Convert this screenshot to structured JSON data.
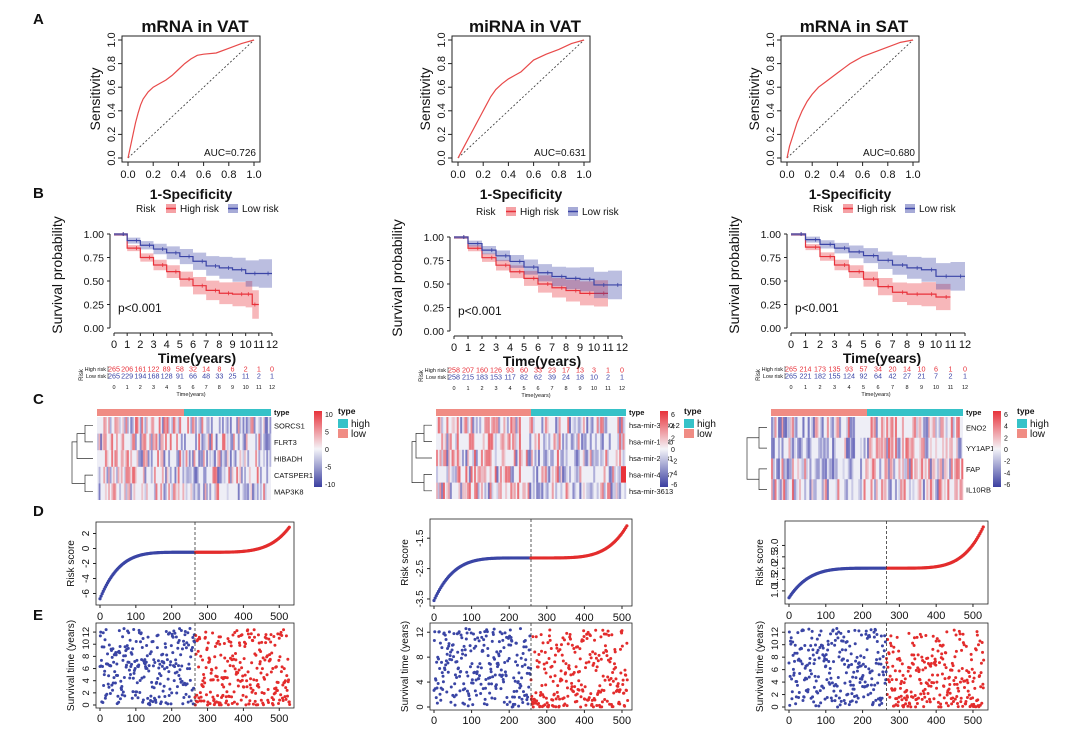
{
  "panel_letters": [
    "A",
    "B",
    "C",
    "D",
    "E"
  ],
  "chart_data": [
    {
      "type": "line",
      "panel": "A",
      "title": "mRNA in VAT",
      "xlabel": "1-Specificity",
      "ylabel": "Sensitivity",
      "auc_label": "AUC=0.726",
      "xlim": [
        0,
        1
      ],
      "ylim": [
        0,
        1
      ],
      "ticks": [
        "0.0",
        "0.2",
        "0.4",
        "0.6",
        "0.8",
        "1.0"
      ],
      "series": [
        {
          "name": "ROC",
          "x": [
            0,
            0.02,
            0.04,
            0.06,
            0.08,
            0.1,
            0.12,
            0.16,
            0.2,
            0.25,
            0.3,
            0.35,
            0.4,
            0.45,
            0.5,
            0.55,
            0.6,
            0.7,
            0.8,
            0.9,
            1.0
          ],
          "y": [
            0,
            0.1,
            0.2,
            0.3,
            0.38,
            0.45,
            0.5,
            0.56,
            0.6,
            0.63,
            0.66,
            0.7,
            0.75,
            0.8,
            0.84,
            0.87,
            0.88,
            0.89,
            0.93,
            0.97,
            1.0
          ]
        }
      ]
    },
    {
      "type": "line",
      "panel": "A",
      "title": "miRNA in VAT",
      "xlabel": "1-Specificity",
      "ylabel": "Sensitivity",
      "auc_label": "AUC=0.631",
      "xlim": [
        0,
        1
      ],
      "ylim": [
        0,
        1
      ],
      "ticks": [
        "0.0",
        "0.2",
        "0.4",
        "0.6",
        "0.8",
        "1.0"
      ],
      "series": [
        {
          "name": "ROC",
          "x": [
            0,
            0.03,
            0.06,
            0.1,
            0.14,
            0.18,
            0.22,
            0.26,
            0.3,
            0.35,
            0.4,
            0.45,
            0.5,
            0.55,
            0.6,
            0.7,
            0.8,
            0.9,
            1.0
          ],
          "y": [
            0,
            0.06,
            0.12,
            0.2,
            0.28,
            0.36,
            0.44,
            0.52,
            0.58,
            0.63,
            0.67,
            0.7,
            0.73,
            0.78,
            0.83,
            0.88,
            0.92,
            0.97,
            1.0
          ]
        }
      ]
    },
    {
      "type": "line",
      "panel": "A",
      "title": "mRNA in SAT",
      "xlabel": "1-Specificity",
      "ylabel": "Sensitivity",
      "auc_label": "AUC=0.680",
      "xlim": [
        0,
        1
      ],
      "ylim": [
        0,
        1
      ],
      "ticks": [
        "0.0",
        "0.2",
        "0.4",
        "0.6",
        "0.8",
        "1.0"
      ],
      "series": [
        {
          "name": "ROC",
          "x": [
            0,
            0.02,
            0.05,
            0.08,
            0.12,
            0.16,
            0.2,
            0.25,
            0.3,
            0.35,
            0.4,
            0.45,
            0.5,
            0.55,
            0.6,
            0.7,
            0.8,
            0.9,
            1.0
          ],
          "y": [
            0,
            0.1,
            0.2,
            0.3,
            0.4,
            0.48,
            0.54,
            0.6,
            0.64,
            0.68,
            0.72,
            0.76,
            0.8,
            0.83,
            0.86,
            0.9,
            0.94,
            0.98,
            1.0
          ]
        }
      ]
    },
    {
      "type": "line",
      "panel": "B",
      "legend_title": "Risk",
      "legend": [
        "High risk",
        "Low risk"
      ],
      "xlabel": "Time(years)",
      "ylabel": "Survival probability",
      "pvalue": "p<0.001",
      "xticks": [
        "0",
        "1",
        "2",
        "3",
        "4",
        "5",
        "6",
        "7",
        "8",
        "9",
        "10",
        "11",
        "12"
      ],
      "yticks": [
        "0.00",
        "0.25",
        "0.50",
        "0.75",
        "1.00"
      ],
      "xlim": [
        0,
        12
      ],
      "ylim": [
        0,
        1
      ],
      "series": [
        {
          "name": "High risk",
          "color": "#e8313a",
          "x": [
            0,
            1,
            2,
            3,
            4,
            5,
            6,
            7,
            8,
            9,
            10,
            10.5,
            11
          ],
          "y": [
            1.0,
            0.85,
            0.75,
            0.67,
            0.6,
            0.52,
            0.45,
            0.4,
            0.37,
            0.36,
            0.36,
            0.25,
            0.25
          ]
        },
        {
          "name": "Low risk",
          "color": "#3b44a6",
          "x": [
            0,
            1,
            2,
            3,
            4,
            5,
            6,
            7,
            8,
            9,
            10,
            11,
            12
          ],
          "y": [
            1.0,
            0.93,
            0.88,
            0.84,
            0.8,
            0.76,
            0.71,
            0.66,
            0.64,
            0.62,
            0.58,
            0.58,
            0.58
          ]
        }
      ],
      "risk_table": {
        "label": "Risk",
        "xlabel": "Time(years)",
        "rows": [
          {
            "name": "High risk",
            "color": "#e8313a",
            "values": [
              "265",
              "206",
              "161",
              "122",
              "89",
              "58",
              "32",
              "14",
              "8",
              "6",
              "2",
              "1",
              "0"
            ]
          },
          {
            "name": "Low risk",
            "color": "#3b44a6",
            "values": [
              "265",
              "229",
              "194",
              "168",
              "128",
              "91",
              "66",
              "48",
              "33",
              "25",
              "11",
              "2",
              "1"
            ]
          }
        ]
      }
    },
    {
      "type": "line",
      "panel": "B",
      "legend_title": "Risk",
      "legend": [
        "High risk",
        "Low risk"
      ],
      "xlabel": "Time(years)",
      "ylabel": "Survival probability",
      "pvalue": "p<0.001",
      "xticks": [
        "0",
        "1",
        "2",
        "3",
        "4",
        "5",
        "6",
        "7",
        "8",
        "9",
        "10",
        "11",
        "12"
      ],
      "yticks": [
        "0.00",
        "0.25",
        "0.50",
        "0.75",
        "1.00"
      ],
      "xlim": [
        0,
        12
      ],
      "ylim": [
        0,
        1
      ],
      "series": [
        {
          "name": "High risk",
          "color": "#e8313a",
          "x": [
            0,
            1,
            2,
            3,
            4,
            5,
            6,
            7,
            8,
            9,
            10,
            11
          ],
          "y": [
            1.0,
            0.88,
            0.78,
            0.7,
            0.63,
            0.56,
            0.5,
            0.46,
            0.43,
            0.4,
            0.4,
            0.4
          ]
        },
        {
          "name": "Low risk",
          "color": "#3b44a6",
          "x": [
            0,
            1,
            2,
            3,
            4,
            5,
            6,
            7,
            8,
            9,
            10,
            11,
            12
          ],
          "y": [
            1.0,
            0.93,
            0.86,
            0.8,
            0.74,
            0.68,
            0.62,
            0.58,
            0.56,
            0.55,
            0.49,
            0.49,
            0.49
          ]
        }
      ],
      "risk_table": {
        "label": "Risk",
        "xlabel": "Time(years)",
        "rows": [
          {
            "name": "High risk",
            "color": "#e8313a",
            "values": [
              "258",
              "207",
              "160",
              "126",
              "93",
              "60",
              "33",
              "23",
              "17",
              "13",
              "3",
              "1",
              "0"
            ]
          },
          {
            "name": "Low risk",
            "color": "#3b44a6",
            "values": [
              "258",
              "215",
              "183",
              "153",
              "117",
              "82",
              "62",
              "39",
              "24",
              "18",
              "10",
              "2",
              "1"
            ]
          }
        ]
      }
    },
    {
      "type": "line",
      "panel": "B",
      "legend_title": "Risk",
      "legend": [
        "High risk",
        "Low risk"
      ],
      "xlabel": "Time(years)",
      "ylabel": "Survival probability",
      "pvalue": "p<0.001",
      "xticks": [
        "0",
        "1",
        "2",
        "3",
        "4",
        "5",
        "6",
        "7",
        "8",
        "9",
        "10",
        "11",
        "12"
      ],
      "yticks": [
        "0.00",
        "0.25",
        "0.50",
        "0.75",
        "1.00"
      ],
      "xlim": [
        0,
        12
      ],
      "ylim": [
        0,
        1
      ],
      "series": [
        {
          "name": "High risk",
          "color": "#e8313a",
          "x": [
            0,
            1,
            2,
            3,
            4,
            5,
            6,
            7,
            8,
            9,
            10,
            11
          ],
          "y": [
            1.0,
            0.86,
            0.76,
            0.67,
            0.6,
            0.52,
            0.44,
            0.38,
            0.36,
            0.36,
            0.33,
            0.33
          ]
        },
        {
          "name": "Low risk",
          "color": "#3b44a6",
          "x": [
            0,
            1,
            2,
            3,
            4,
            5,
            6,
            7,
            8,
            9,
            10,
            11,
            12
          ],
          "y": [
            1.0,
            0.94,
            0.89,
            0.85,
            0.81,
            0.77,
            0.72,
            0.67,
            0.64,
            0.62,
            0.55,
            0.55,
            0.55
          ]
        }
      ],
      "risk_table": {
        "label": "Risk",
        "xlabel": "Time(years)",
        "rows": [
          {
            "name": "High risk",
            "color": "#e8313a",
            "values": [
              "265",
              "214",
              "173",
              "135",
              "93",
              "57",
              "34",
              "20",
              "14",
              "10",
              "6",
              "1",
              "0"
            ]
          },
          {
            "name": "Low risk",
            "color": "#3b44a6",
            "values": [
              "265",
              "221",
              "182",
              "155",
              "124",
              "92",
              "64",
              "42",
              "27",
              "21",
              "7",
              "2",
              "1"
            ]
          }
        ]
      }
    },
    {
      "type": "heatmap",
      "panel": "C",
      "rows": [
        "SORCS1",
        "FLRT3",
        "HIBADH",
        "CATSPER1",
        "MAP3K8"
      ],
      "type_title": "type",
      "type_levels": [
        "high",
        "low"
      ],
      "type_colors": [
        "#36c2c8",
        "#f08c84"
      ],
      "scale_ticks": [
        "10",
        "5",
        "0",
        "-5",
        "-10"
      ],
      "scale_range": [
        -10,
        10
      ],
      "split_fraction": 0.5
    },
    {
      "type": "heatmap",
      "panel": "C",
      "rows": [
        "hsa-mir-3130-2",
        "hsa-mir-148b",
        "hsa-mir-2681",
        "hsa-mir-4487",
        "hsa-mir-3613"
      ],
      "type_title": "type",
      "type_levels": [
        "high",
        "low"
      ],
      "type_colors": [
        "#36c2c8",
        "#f08c84"
      ],
      "scale_ticks": [
        "6",
        "4",
        "2",
        "0",
        "-2",
        "-4",
        "-6"
      ],
      "scale_range": [
        -6,
        6
      ],
      "split_fraction": 0.5
    },
    {
      "type": "heatmap",
      "panel": "C",
      "rows": [
        "ENO2",
        "YY1AP1",
        "FAP",
        "IL10RB"
      ],
      "type_title": "type",
      "type_levels": [
        "high",
        "low"
      ],
      "type_colors": [
        "#36c2c8",
        "#f08c84"
      ],
      "scale_ticks": [
        "6",
        "4",
        "2",
        "0",
        "-2",
        "-4",
        "-6"
      ],
      "scale_range": [
        -6,
        6
      ],
      "split_fraction": 0.5
    },
    {
      "type": "scatter",
      "panel": "D",
      "ylabel": "Risk score",
      "n": 530,
      "cutoff": 265,
      "xlim": [
        0,
        530
      ],
      "xticks": [
        "0",
        "100",
        "200",
        "300",
        "400",
        "500"
      ],
      "ylim": [
        -7,
        3
      ],
      "yticks": [
        "-6",
        "-4",
        "-2",
        "0",
        "2"
      ],
      "ymin": -6.7,
      "ymid": -0.5,
      "ymax": 2.9
    },
    {
      "type": "scatter",
      "panel": "D",
      "ylabel": "Risk score",
      "n": 516,
      "cutoff": 258,
      "xlim": [
        0,
        516
      ],
      "xticks": [
        "0",
        "100",
        "200",
        "300",
        "400",
        "500"
      ],
      "ylim": [
        -3.6,
        -1.0
      ],
      "yticks": [
        "-3.5",
        "-2.5",
        "-1.5"
      ],
      "ymin": -3.55,
      "ymid": -2.15,
      "ymax": -1.05
    },
    {
      "type": "scatter",
      "panel": "D",
      "ylabel": "Risk score",
      "n": 530,
      "cutoff": 265,
      "xlim": [
        0,
        530
      ],
      "xticks": [
        "0",
        "100",
        "200",
        "300",
        "400",
        "500"
      ],
      "ylim": [
        0.6,
        3.9
      ],
      "yticks": [
        "1.0",
        "1.5",
        "2.0",
        "2.5",
        "3.0"
      ],
      "ymin": 0.7,
      "ymid": 2.0,
      "ymax": 3.85
    },
    {
      "type": "scatter",
      "panel": "E",
      "ylabel": "Survival time (years)",
      "n": 530,
      "cutoff": 265,
      "xlim": [
        0,
        530
      ],
      "xticks": [
        "0",
        "100",
        "200",
        "300",
        "400",
        "500"
      ],
      "ylim": [
        0,
        13
      ],
      "yticks": [
        "0",
        "2",
        "4",
        "6",
        "8",
        "10",
        "12"
      ]
    },
    {
      "type": "scatter",
      "panel": "E",
      "ylabel": "Survival time (years)",
      "n": 516,
      "cutoff": 258,
      "xlim": [
        0,
        516
      ],
      "xticks": [
        "0",
        "100",
        "200",
        "300",
        "400",
        "500"
      ],
      "ylim": [
        0,
        13
      ],
      "yticks": [
        "0",
        "4",
        "8",
        "12"
      ]
    },
    {
      "type": "scatter",
      "panel": "E",
      "ylabel": "Survival time (years)",
      "n": 530,
      "cutoff": 265,
      "xlim": [
        0,
        530
      ],
      "xticks": [
        "0",
        "100",
        "200",
        "300",
        "400",
        "500"
      ],
      "ylim": [
        0,
        13
      ],
      "yticks": [
        "0",
        "2",
        "4",
        "6",
        "8",
        "10",
        "12"
      ]
    }
  ]
}
